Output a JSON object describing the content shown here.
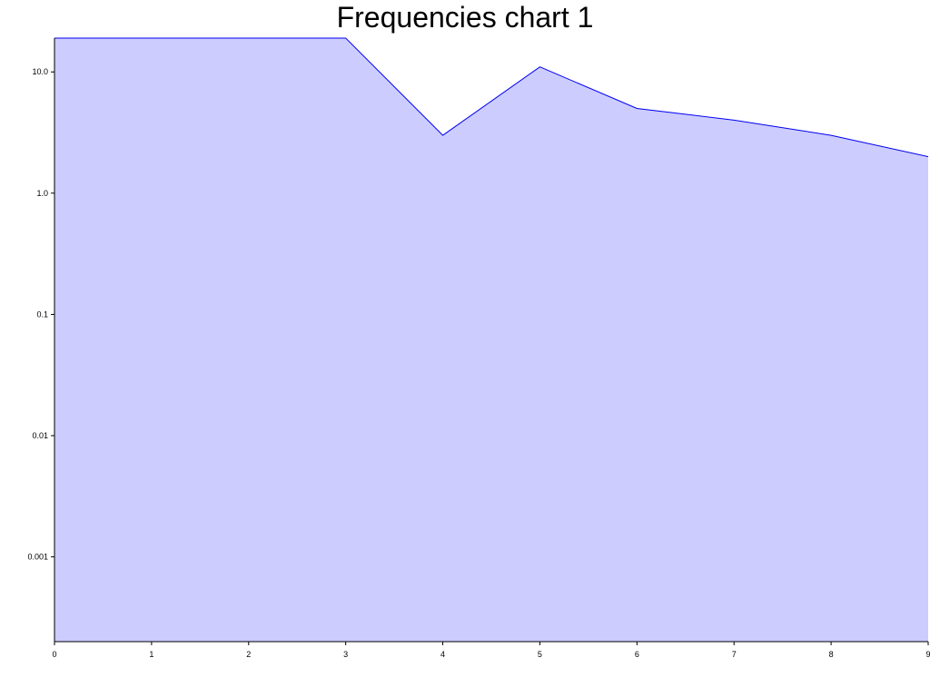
{
  "chart_data": {
    "type": "area",
    "title": "Frequencies chart 1",
    "xlabel": "",
    "ylabel": "",
    "x": [
      0,
      1,
      2,
      3,
      4,
      5,
      6,
      7,
      8,
      9
    ],
    "x_ticks": [
      "0",
      "1",
      "2",
      "3",
      "4",
      "5",
      "6",
      "7",
      "8",
      "9"
    ],
    "xlim": [
      0,
      9
    ],
    "y_scale": "log",
    "ylim": [
      0.0002,
      19
    ],
    "y_ticks": [
      {
        "value": 10,
        "label": "10.0"
      },
      {
        "value": 1,
        "label": "1.0"
      },
      {
        "value": 0.1,
        "label": "0.1"
      },
      {
        "value": 0.01,
        "label": "0.01"
      },
      {
        "value": 0.001,
        "label": "0.001"
      }
    ],
    "series": [
      {
        "values": [
          19,
          19,
          19,
          19,
          3,
          11,
          5,
          4,
          3,
          2
        ],
        "fill_color": "#ccccff",
        "line_color": "#0000ee"
      }
    ],
    "grid": false,
    "legend": "none"
  }
}
